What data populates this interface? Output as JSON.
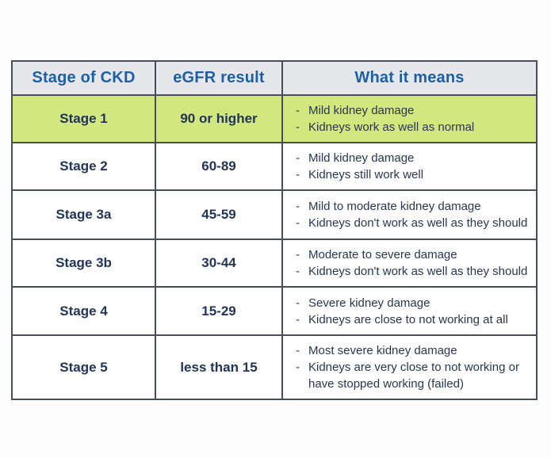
{
  "ui": {
    "bullet": "-"
  },
  "colors": {
    "page_bg": "#fdfdfd",
    "header_bg": "#e6e7ea",
    "header_text": "#1d5fa8",
    "highlight_row_bg": "#d2e77e",
    "body_text": "#23345a",
    "border": "#474e57"
  },
  "table": {
    "columns": [
      "Stage of CKD",
      "eGFR result",
      "What it means"
    ],
    "rows": [
      {
        "stage": "Stage 1",
        "egfr": "90 or higher",
        "highlight": true,
        "meanings": [
          "Mild kidney damage",
          "Kidneys work as well as normal"
        ]
      },
      {
        "stage": "Stage 2",
        "egfr": "60-89",
        "highlight": false,
        "meanings": [
          "Mild kidney damage",
          "Kidneys still work well"
        ]
      },
      {
        "stage": "Stage 3a",
        "egfr": "45-59",
        "highlight": false,
        "meanings": [
          "Mild to moderate kidney damage",
          "Kidneys don't work as well as they should"
        ]
      },
      {
        "stage": "Stage 3b",
        "egfr": "30-44",
        "highlight": false,
        "meanings": [
          "Moderate to severe damage",
          "Kidneys don't work as well as they should"
        ]
      },
      {
        "stage": "Stage 4",
        "egfr": "15-29",
        "highlight": false,
        "meanings": [
          "Severe kidney damage",
          "Kidneys are close to not working at all"
        ]
      },
      {
        "stage": "Stage 5",
        "egfr": "less than 15",
        "highlight": false,
        "meanings": [
          "Most severe kidney damage",
          "Kidneys are very close to not working or have stopped working (failed)"
        ]
      }
    ]
  },
  "chart_data": {
    "type": "table",
    "title": "",
    "columns": [
      "Stage of CKD",
      "eGFR result",
      "What it means"
    ],
    "rows": [
      [
        "Stage 1",
        "90 or higher",
        "Mild kidney damage; Kidneys work as well as normal"
      ],
      [
        "Stage 2",
        "60-89",
        "Mild kidney damage; Kidneys still work well"
      ],
      [
        "Stage 3a",
        "45-59",
        "Mild to moderate kidney damage; Kidneys don't work as well as they should"
      ],
      [
        "Stage 3b",
        "30-44",
        "Moderate to severe damage; Kidneys don't work as well as they should"
      ],
      [
        "Stage 4",
        "15-29",
        "Severe kidney damage; Kidneys are close to not working at all"
      ],
      [
        "Stage 5",
        "less than 15",
        "Most severe kidney damage; Kidneys are very close to not working or have stopped working (failed)"
      ]
    ],
    "highlighted_row": "Stage 1"
  }
}
